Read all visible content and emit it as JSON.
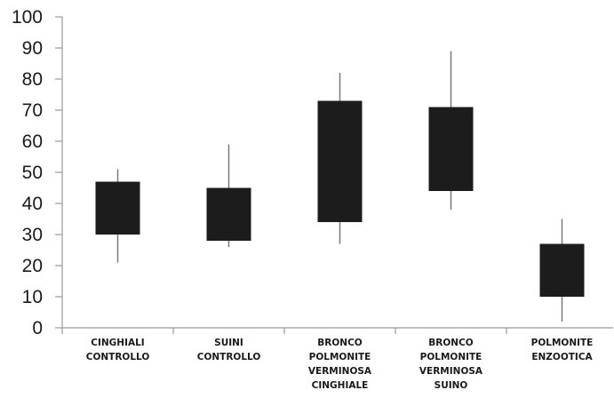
{
  "chart_data": {
    "type": "box",
    "categories": [
      [
        "CINGHIALI",
        "CONTROLLO"
      ],
      [
        "SUINI",
        "CONTROLLO"
      ],
      [
        "BRONCO",
        "POLMONITE",
        "VERMINOSA",
        "CINGHIALE"
      ],
      [
        "BRONCO",
        "POLMONITE",
        "VERMINOSA",
        "SUINO"
      ],
      [
        "POLMONITE",
        "ENZOOTICA"
      ]
    ],
    "boxes": [
      {
        "low": 21,
        "q1": 30,
        "q3": 47,
        "high": 51
      },
      {
        "low": 26,
        "q1": 28,
        "q3": 45,
        "high": 59
      },
      {
        "low": 27,
        "q1": 34,
        "q3": 73,
        "high": 82
      },
      {
        "low": 38,
        "q1": 44,
        "q3": 71,
        "high": 89
      },
      {
        "low": 2,
        "q1": 10,
        "q3": 27,
        "high": 35
      }
    ],
    "yticks": [
      "0",
      "10",
      "20",
      "30",
      "40",
      "50",
      "60",
      "70",
      "80",
      "90",
      "100"
    ],
    "ylim": [
      0,
      100
    ],
    "grid": false,
    "colors": {
      "box": "#1c1c1c",
      "whisker": "#7a7a7a",
      "axis": "#9a9a9a"
    }
  }
}
